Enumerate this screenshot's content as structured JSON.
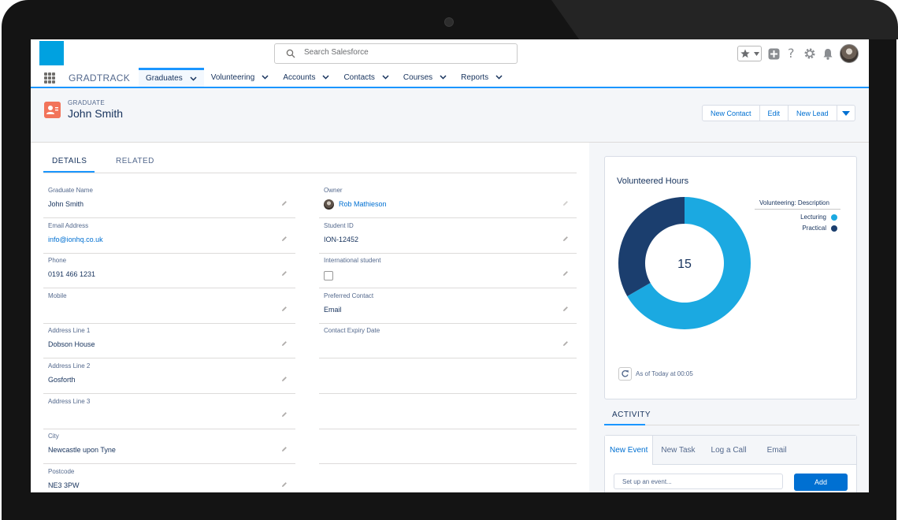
{
  "header": {
    "search_placeholder": "Search Salesforce"
  },
  "nav": {
    "app_name": "GRADTRACK",
    "tabs": [
      {
        "label": "Graduates"
      },
      {
        "label": "Volunteering"
      },
      {
        "label": "Accounts"
      },
      {
        "label": "Contacts"
      },
      {
        "label": "Courses"
      },
      {
        "label": "Reports"
      }
    ]
  },
  "record": {
    "type": "GRADUATE",
    "name": "John Smith",
    "buttons": {
      "new_contact": "New Contact",
      "edit": "Edit",
      "new_lead": "New Lead"
    }
  },
  "detail_tabs": {
    "details": "DETAILS",
    "related": "RELATED"
  },
  "fields": {
    "graduate_name": {
      "label": "Graduate Name",
      "value": "John Smith"
    },
    "owner": {
      "label": "Owner",
      "value": "Rob Mathieson"
    },
    "email": {
      "label": "Email Address",
      "value": "info@ionhq.co.uk"
    },
    "student_id": {
      "label": "Student ID",
      "value": "ION-12452"
    },
    "phone": {
      "label": "Phone",
      "value": "0191 466 1231"
    },
    "international": {
      "label": "International student",
      "checked": false
    },
    "mobile": {
      "label": "Mobile",
      "value": ""
    },
    "preferred_contact": {
      "label": "Preferred Contact",
      "value": "Email"
    },
    "address1": {
      "label": "Address Line 1",
      "value": "Dobson House"
    },
    "contact_expiry": {
      "label": "Contact Expiry Date",
      "value": ""
    },
    "address2": {
      "label": "Address Line 2",
      "value": "Gosforth"
    },
    "address3": {
      "label": "Address Line 3",
      "value": ""
    },
    "city": {
      "label": "City",
      "value": "Newcastle upon Tyne"
    },
    "postcode": {
      "label": "Postcode",
      "value": "NE3 3PW"
    }
  },
  "chart_data": {
    "type": "pie",
    "title": "Volunteered Hours",
    "center_total": "15",
    "legend_title": "Volunteering: Description",
    "legend_position": "right",
    "series": [
      {
        "name": "Lecturing",
        "value": 10,
        "color": "#1ba9e1"
      },
      {
        "name": "Practical",
        "value": 5,
        "color": "#1b3e6e"
      }
    ],
    "as_of": "As of Today at 00:05"
  },
  "activity": {
    "tab_label": "ACTIVITY",
    "tabs": [
      "New Event",
      "New Task",
      "Log a Call",
      "Email"
    ],
    "input_placeholder": "Set up an event...",
    "add_label": "Add"
  }
}
